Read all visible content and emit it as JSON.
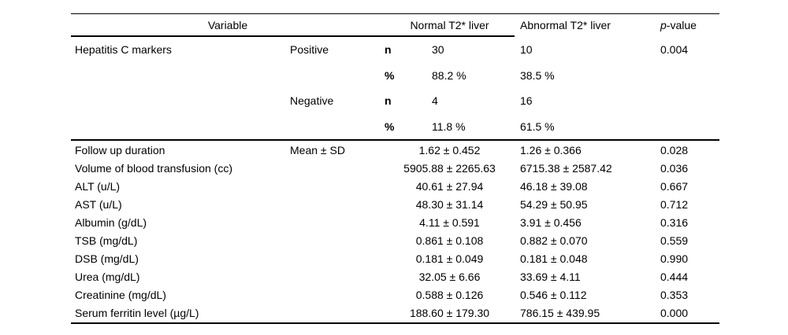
{
  "page": {
    "background_color": "#ffffff",
    "text_color": "#000000",
    "rule_color": "#000000"
  },
  "table": {
    "header": {
      "variable": "Variable",
      "normal": "Normal T2* liver",
      "abnormal": "Abnormal T2* liver",
      "p_italic": "p",
      "p_rest": "-value"
    },
    "categorical_rows": [
      {
        "variable": "Hepatitis C markers",
        "subgroup": "Positive",
        "stat": "n",
        "normal": "30",
        "abnormal": "10",
        "p": "0.004"
      },
      {
        "variable": "",
        "subgroup": "",
        "stat": "%",
        "normal": "88.2 %",
        "abnormal": "38.5 %",
        "p": ""
      },
      {
        "variable": "",
        "subgroup": "Negative",
        "stat": "n",
        "normal": "4",
        "abnormal": "16",
        "p": ""
      },
      {
        "variable": "",
        "subgroup": "",
        "stat": "%",
        "normal": "11.8 %",
        "abnormal": "61.5 %",
        "p": ""
      }
    ],
    "continuous_rows": [
      {
        "variable": "Follow up duration",
        "subgroup": "Mean ± SD",
        "normal": "1.62 ± 0.452",
        "abnormal": "1.26 ± 0.366",
        "p": "0.028"
      },
      {
        "variable": "Volume of blood transfusion (cc)",
        "subgroup": "",
        "normal": "5905.88 ± 2265.63",
        "abnormal": "6715.38 ± 2587.42",
        "p": "0.036"
      },
      {
        "variable": "ALT (u/L)",
        "subgroup": "",
        "normal": "40.61 ± 27.94",
        "abnormal": "46.18 ± 39.08",
        "p": "0.667"
      },
      {
        "variable": "AST (u/L)",
        "subgroup": "",
        "normal": "48.30 ± 31.14",
        "abnormal": "54.29 ± 50.95",
        "p": "0.712"
      },
      {
        "variable": "Albumin (g/dL)",
        "subgroup": "",
        "normal": "4.11 ± 0.591",
        "abnormal": "3.91 ± 0.456",
        "p": "0.316"
      },
      {
        "variable": "TSB (mg/dL)",
        "subgroup": "",
        "normal": "0.861 ± 0.108",
        "abnormal": "0.882 ± 0.070",
        "p": "0.559"
      },
      {
        "variable": "DSB (mg/dL)",
        "subgroup": "",
        "normal": "0.181 ± 0.049",
        "abnormal": "0.181 ± 0.048",
        "p": "0.990"
      },
      {
        "variable": "Urea (mg/dL)",
        "subgroup": "",
        "normal": "32.05 ± 6.66",
        "abnormal": "33.69 ± 4.11",
        "p": "0.444"
      },
      {
        "variable": "Creatinine (mg/dL)",
        "subgroup": "",
        "normal": "0.588 ± 0.126",
        "abnormal": "0.546 ± 0.112",
        "p": "0.353"
      },
      {
        "variable": "Serum ferritin level (µg/L)",
        "subgroup": "",
        "normal": "188.60 ± 179.30",
        "abnormal": "786.15 ± 439.95",
        "p": "0.000"
      }
    ]
  }
}
